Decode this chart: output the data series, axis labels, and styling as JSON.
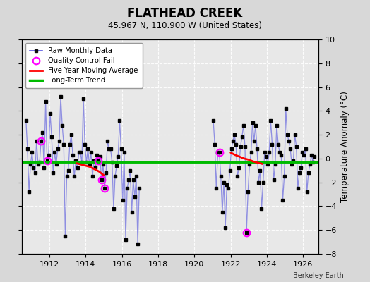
{
  "title": "FLATHEAD CREEK",
  "subtitle": "45.967 N, 110.900 W (United States)",
  "ylabel": "Temperature Anomaly (°C)",
  "credit": "Berkeley Earth",
  "ylim": [
    -8,
    10
  ],
  "xlim": [
    1910.5,
    1926.83
  ],
  "xticks": [
    1912,
    1914,
    1916,
    1918,
    1920,
    1922,
    1924,
    1926
  ],
  "yticks": [
    -8,
    -6,
    -4,
    -2,
    0,
    2,
    4,
    6,
    8,
    10
  ],
  "background_color": "#d8d8d8",
  "plot_bg_color": "#e8e8e8",
  "raw_x": [
    1910.708,
    1910.792,
    1910.875,
    1910.958,
    1911.042,
    1911.125,
    1911.208,
    1911.292,
    1911.375,
    1911.458,
    1911.542,
    1911.625,
    1911.708,
    1911.792,
    1911.875,
    1911.958,
    1912.042,
    1912.125,
    1912.208,
    1912.292,
    1912.375,
    1912.458,
    1912.542,
    1912.625,
    1912.708,
    1912.792,
    1912.875,
    1912.958,
    1913.042,
    1913.125,
    1913.208,
    1913.292,
    1913.375,
    1913.458,
    1913.542,
    1913.625,
    1913.708,
    1913.792,
    1913.875,
    1913.958,
    1914.042,
    1914.125,
    1914.208,
    1914.292,
    1914.375,
    1914.458,
    1914.542,
    1914.625,
    1914.708,
    1914.792,
    1914.875,
    1914.958,
    1915.042,
    1915.125,
    1915.208,
    1915.292,
    1915.375,
    1915.458,
    1915.542,
    1915.625,
    1915.708,
    1915.792,
    1915.875,
    1915.958,
    1916.042,
    1916.125,
    1916.208,
    1916.292,
    1916.375,
    1916.458,
    1916.542,
    1916.625,
    1916.708,
    1916.792,
    1916.875,
    1916.958,
    1921.042,
    1921.125,
    1921.208,
    1921.292,
    1921.375,
    1921.458,
    1921.542,
    1921.625,
    1921.708,
    1921.792,
    1921.875,
    1921.958,
    1922.042,
    1922.125,
    1922.208,
    1922.292,
    1922.375,
    1922.458,
    1922.542,
    1922.625,
    1922.708,
    1922.792,
    1922.875,
    1922.958,
    1923.042,
    1923.125,
    1923.208,
    1923.292,
    1923.375,
    1923.458,
    1923.542,
    1923.625,
    1923.708,
    1923.792,
    1923.875,
    1923.958,
    1924.042,
    1924.125,
    1924.208,
    1924.292,
    1924.375,
    1924.458,
    1924.542,
    1924.625,
    1924.708,
    1924.792,
    1924.875,
    1924.958,
    1925.042,
    1925.125,
    1925.208,
    1925.292,
    1925.375,
    1925.458,
    1925.542,
    1925.625,
    1925.708,
    1925.792,
    1925.875,
    1925.958,
    1926.042,
    1926.125,
    1926.208,
    1926.292,
    1926.375,
    1926.458,
    1926.542,
    1926.625
  ],
  "raw_y": [
    3.2,
    0.8,
    -2.8,
    -0.5,
    0.5,
    -0.8,
    -1.2,
    1.5,
    -0.5,
    -0.3,
    1.5,
    2.2,
    -0.8,
    4.8,
    -0.2,
    0.3,
    3.8,
    1.8,
    -1.2,
    0.5,
    -0.5,
    0.8,
    1.5,
    5.2,
    2.8,
    1.2,
    -6.5,
    -1.5,
    -1.0,
    1.2,
    2.0,
    0.3,
    -1.5,
    -0.2,
    -0.8,
    0.5,
    0.5,
    -0.3,
    5.0,
    1.2,
    -0.3,
    0.8,
    -0.5,
    0.5,
    -1.5,
    -0.2,
    -0.7,
    0.3,
    -0.2,
    0.2,
    -1.8,
    -0.5,
    -2.5,
    -1.2,
    1.5,
    0.8,
    0.8,
    -0.3,
    -4.2,
    -1.5,
    -0.6,
    0.2,
    3.2,
    0.8,
    -3.5,
    0.5,
    -6.8,
    -2.5,
    -1.8,
    -1.0,
    -4.5,
    -1.8,
    -3.2,
    -1.5,
    -7.2,
    -2.5,
    3.2,
    1.2,
    -2.5,
    0.5,
    0.5,
    -1.5,
    -4.5,
    -2.0,
    -5.8,
    -2.2,
    -2.5,
    -1.0,
    0.8,
    1.5,
    2.0,
    1.2,
    -1.5,
    -0.8,
    1.0,
    1.8,
    2.8,
    1.0,
    -6.2,
    -2.8,
    -0.5,
    0.5,
    3.0,
    1.5,
    2.8,
    0.8,
    -2.0,
    -1.0,
    -4.2,
    -2.0,
    0.5,
    0.2,
    -0.5,
    0.5,
    3.2,
    1.2,
    -1.8,
    -0.5,
    2.8,
    1.2,
    0.5,
    0.3,
    -3.5,
    -1.5,
    4.2,
    2.0,
    1.5,
    0.8,
    -0.5,
    -0.2,
    2.0,
    1.0,
    -2.5,
    -1.2,
    -0.8,
    0.5,
    0.3,
    0.8,
    -2.8,
    -1.2,
    -0.5,
    0.3,
    -0.3,
    0.2
  ],
  "qc_fail_x": [
    1911.542,
    1911.875,
    1914.708,
    1914.875,
    1915.042,
    1921.375,
    1922.875
  ],
  "qc_fail_y": [
    1.5,
    -0.2,
    -0.2,
    -1.8,
    -2.5,
    0.5,
    -6.2
  ],
  "moving_avg_x1": [
    1913.5,
    1913.75,
    1914.0,
    1914.25,
    1914.5,
    1914.75,
    1915.0
  ],
  "moving_avg_y1": [
    -0.4,
    -0.5,
    -0.6,
    -0.7,
    -0.9,
    -1.1,
    -1.4
  ],
  "moving_avg_x2": [
    1922.0,
    1922.25,
    1922.5,
    1922.75,
    1923.0,
    1923.25,
    1923.5,
    1923.75
  ],
  "moving_avg_y2": [
    0.5,
    0.3,
    0.15,
    0.0,
    -0.1,
    -0.25,
    -0.35,
    -0.45
  ],
  "trend_x": [
    1910.5,
    1926.83
  ],
  "trend_y": [
    -0.32,
    -0.32
  ],
  "line_color": "#4444dd",
  "line_alpha": 0.55,
  "marker_color": "black",
  "qc_color": "magenta",
  "moving_avg_color": "red",
  "trend_color": "#00bb00"
}
